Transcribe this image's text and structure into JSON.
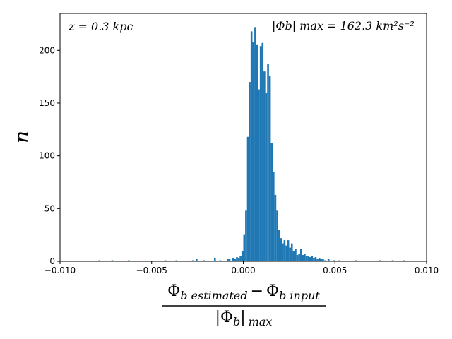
{
  "chart_data": {
    "type": "bar",
    "subtype": "histogram",
    "title": "",
    "ylabel": "n",
    "xlabel": {
      "numerator_left": "Φ",
      "numerator_left_sub": "b estimated",
      "minus": "−",
      "numerator_right": "Φ",
      "numerator_right_sub": "b input",
      "denominator": "|Φ",
      "denominator_sub_b": "b",
      "denominator_tail": "|",
      "denominator_sub": "max"
    },
    "xlim": [
      -0.01,
      0.01
    ],
    "ylim": [
      0,
      235
    ],
    "x_ticks": [
      -0.01,
      -0.005,
      0.0,
      0.005,
      0.01
    ],
    "x_tick_labels": [
      "−0.010",
      "−0.005",
      "0.000",
      "0.005",
      "0.010"
    ],
    "y_ticks": [
      0,
      50,
      100,
      150,
      200
    ],
    "y_tick_labels": [
      "0",
      "50",
      "100",
      "150",
      "200"
    ],
    "bar_color": "#1f77b4",
    "annotations": {
      "left": "z = 0.3 kpc",
      "right": "|Φb| max = 162.3 km²s⁻²"
    },
    "bins": [
      {
        "x": -0.0079,
        "n": 1
      },
      {
        "x": -0.0072,
        "n": 1
      },
      {
        "x": -0.0063,
        "n": 1
      },
      {
        "x": -0.0043,
        "n": 1
      },
      {
        "x": -0.0037,
        "n": 1
      },
      {
        "x": -0.0028,
        "n": 1
      },
      {
        "x": -0.0026,
        "n": 2
      },
      {
        "x": -0.0022,
        "n": 1
      },
      {
        "x": -0.0016,
        "n": 3
      },
      {
        "x": -0.0013,
        "n": 1
      },
      {
        "x": -0.0009,
        "n": 2
      },
      {
        "x": -0.0008,
        "n": 2
      },
      {
        "x": -0.0006,
        "n": 3
      },
      {
        "x": -0.0005,
        "n": 2
      },
      {
        "x": -0.0004,
        "n": 4
      },
      {
        "x": -0.0003,
        "n": 3
      },
      {
        "x": -0.0002,
        "n": 5
      },
      {
        "x": -0.0001,
        "n": 10
      },
      {
        "x": 0.0,
        "n": 25
      },
      {
        "x": 0.0001,
        "n": 48
      },
      {
        "x": 0.0002,
        "n": 118
      },
      {
        "x": 0.0003,
        "n": 170
      },
      {
        "x": 0.0004,
        "n": 218
      },
      {
        "x": 0.0005,
        "n": 208
      },
      {
        "x": 0.0006,
        "n": 222
      },
      {
        "x": 0.0007,
        "n": 205
      },
      {
        "x": 0.0008,
        "n": 163
      },
      {
        "x": 0.0009,
        "n": 204
      },
      {
        "x": 0.001,
        "n": 207
      },
      {
        "x": 0.0011,
        "n": 180
      },
      {
        "x": 0.0012,
        "n": 160
      },
      {
        "x": 0.0013,
        "n": 187
      },
      {
        "x": 0.0014,
        "n": 176
      },
      {
        "x": 0.0015,
        "n": 112
      },
      {
        "x": 0.0016,
        "n": 85
      },
      {
        "x": 0.0017,
        "n": 63
      },
      {
        "x": 0.0018,
        "n": 48
      },
      {
        "x": 0.0019,
        "n": 30
      },
      {
        "x": 0.002,
        "n": 22
      },
      {
        "x": 0.0021,
        "n": 17
      },
      {
        "x": 0.0022,
        "n": 20
      },
      {
        "x": 0.0023,
        "n": 15
      },
      {
        "x": 0.0024,
        "n": 20
      },
      {
        "x": 0.0025,
        "n": 13
      },
      {
        "x": 0.0026,
        "n": 17
      },
      {
        "x": 0.0027,
        "n": 10
      },
      {
        "x": 0.0028,
        "n": 12
      },
      {
        "x": 0.0029,
        "n": 6
      },
      {
        "x": 0.003,
        "n": 7
      },
      {
        "x": 0.0031,
        "n": 12
      },
      {
        "x": 0.0032,
        "n": 6
      },
      {
        "x": 0.0033,
        "n": 7
      },
      {
        "x": 0.0034,
        "n": 5
      },
      {
        "x": 0.0035,
        "n": 5
      },
      {
        "x": 0.0036,
        "n": 4
      },
      {
        "x": 0.0037,
        "n": 5
      },
      {
        "x": 0.0038,
        "n": 3
      },
      {
        "x": 0.0039,
        "n": 4
      },
      {
        "x": 0.004,
        "n": 2
      },
      {
        "x": 0.0041,
        "n": 3
      },
      {
        "x": 0.0042,
        "n": 2
      },
      {
        "x": 0.0043,
        "n": 2
      },
      {
        "x": 0.0044,
        "n": 1
      },
      {
        "x": 0.0046,
        "n": 2
      },
      {
        "x": 0.0049,
        "n": 1
      },
      {
        "x": 0.0052,
        "n": 1
      },
      {
        "x": 0.0061,
        "n": 1
      },
      {
        "x": 0.0074,
        "n": 1
      },
      {
        "x": 0.0081,
        "n": 1
      },
      {
        "x": 0.0087,
        "n": 1
      }
    ]
  }
}
